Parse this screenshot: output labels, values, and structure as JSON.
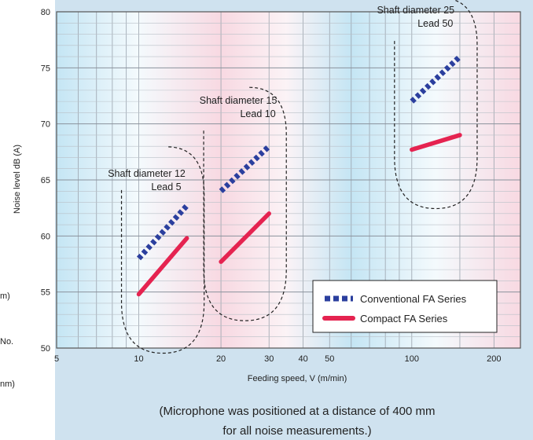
{
  "chart_data": {
    "type": "line",
    "xscale": "log",
    "xlim": [
      5,
      250
    ],
    "ylim": [
      50,
      80
    ],
    "x_ticks": [
      5,
      10,
      20,
      30,
      40,
      50,
      100,
      200
    ],
    "y_ticks": [
      50,
      55,
      60,
      65,
      70,
      75,
      80
    ],
    "xlabel": "Feeding speed, V (m/min)",
    "ylabel": "Noise level dB (A)",
    "grid": true,
    "legend_position": "bottom-right",
    "series": [
      {
        "name": "Conventional FA Series",
        "color": "#2b3f9e",
        "style": "dotted",
        "segments": [
          {
            "x": [
              10,
              15
            ],
            "y": [
              58,
              62.7
            ]
          },
          {
            "x": [
              20,
              30
            ],
            "y": [
              64,
              68
            ]
          },
          {
            "x": [
              100,
              150
            ],
            "y": [
              72,
              76
            ]
          }
        ]
      },
      {
        "name": "Compact FA Series",
        "color": "#e52350",
        "style": "solid",
        "segments": [
          {
            "x": [
              10,
              15
            ],
            "y": [
              54.8,
              59.8
            ]
          },
          {
            "x": [
              20,
              30
            ],
            "y": [
              57.7,
              62
            ]
          },
          {
            "x": [
              100,
              150
            ],
            "y": [
              67.7,
              69
            ]
          }
        ]
      }
    ],
    "annotations": [
      {
        "lines": [
          "Shaft diameter 12",
          "Lead 5"
        ]
      },
      {
        "lines": [
          "Shaft diameter 15",
          "Lead 10"
        ]
      },
      {
        "lines": [
          "Shaft diameter 25",
          "Lead 50"
        ]
      }
    ]
  },
  "footnote": {
    "line1": "(Microphone was positioned at a distance of 400 mm",
    "line2": "for all noise measurements.)"
  },
  "left_edge_fragments": [
    "m)",
    "No.",
    "nm)"
  ]
}
